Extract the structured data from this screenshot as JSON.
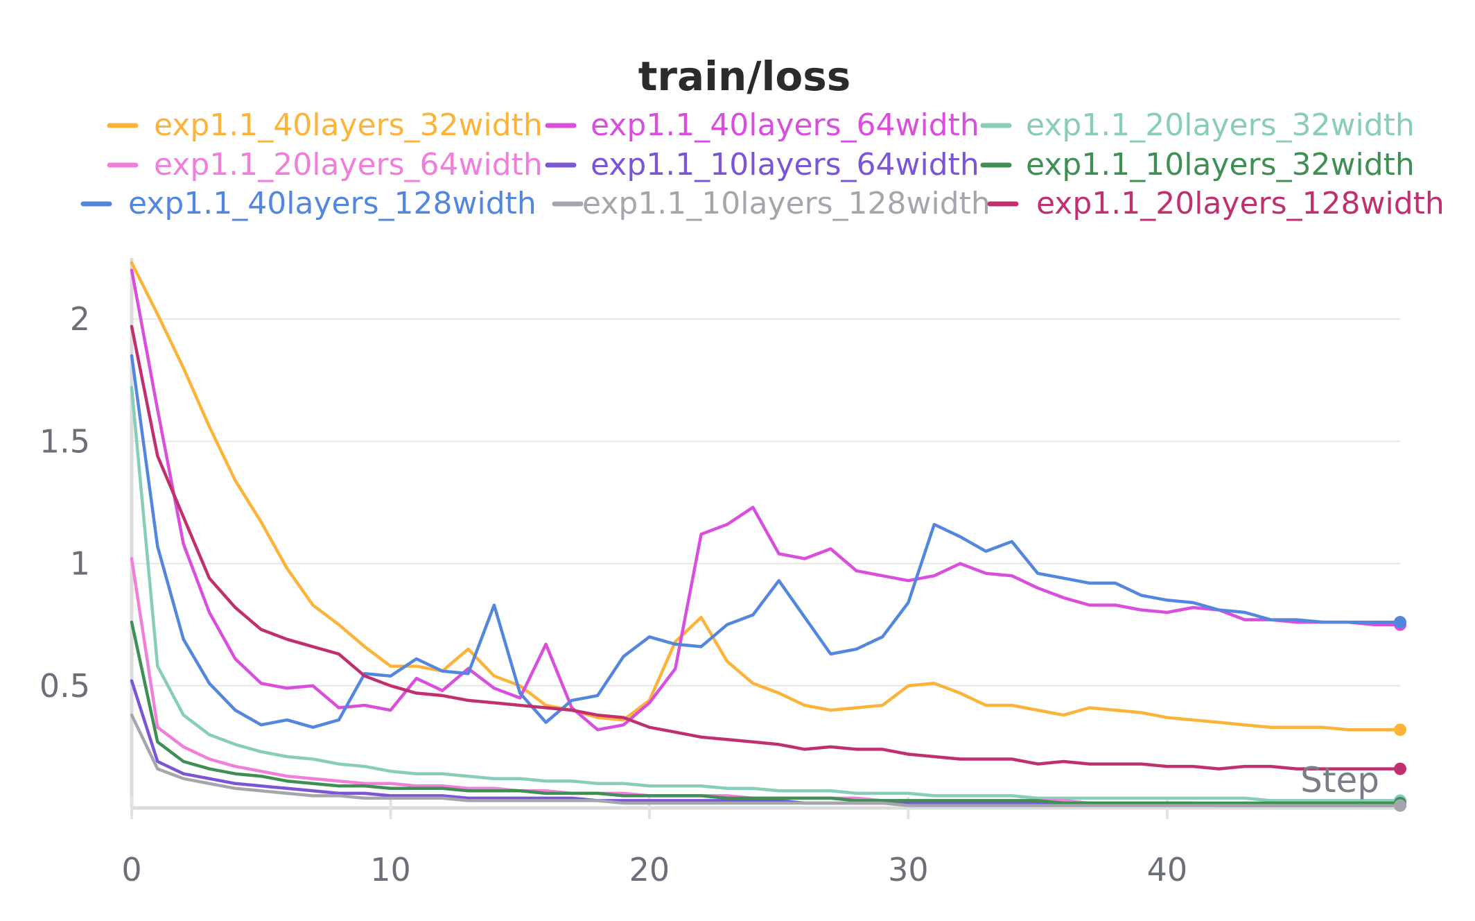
{
  "chart_data": {
    "type": "line",
    "title": "train/loss",
    "xlabel": "Step",
    "ylabel": "",
    "xlim": [
      0,
      49
    ],
    "ylim": [
      0,
      2.25
    ],
    "xticks": [
      0,
      10,
      20,
      30,
      40
    ],
    "yticks": [
      0.5,
      1,
      1.5,
      2
    ],
    "ytick_labels": [
      "0.5",
      "1",
      "1.5",
      "2"
    ],
    "grid": true,
    "legend_position": "top",
    "x": [
      0,
      1,
      2,
      3,
      4,
      5,
      6,
      7,
      8,
      9,
      10,
      11,
      12,
      13,
      14,
      15,
      16,
      17,
      18,
      19,
      20,
      21,
      22,
      23,
      24,
      25,
      26,
      27,
      28,
      29,
      30,
      31,
      32,
      33,
      34,
      35,
      36,
      37,
      38,
      39,
      40,
      41,
      42,
      43,
      44,
      45,
      46,
      47,
      48,
      49
    ],
    "series": [
      {
        "name": "exp1.1_40layers_32width",
        "color": "#fbb33a",
        "values": [
          2.23,
          2.02,
          1.8,
          1.56,
          1.34,
          1.17,
          0.98,
          0.83,
          0.75,
          0.66,
          0.58,
          0.58,
          0.56,
          0.65,
          0.54,
          0.5,
          0.42,
          0.4,
          0.37,
          0.36,
          0.44,
          0.68,
          0.78,
          0.6,
          0.51,
          0.47,
          0.42,
          0.4,
          0.41,
          0.42,
          0.5,
          0.51,
          0.47,
          0.42,
          0.42,
          0.4,
          0.38,
          0.41,
          0.4,
          0.39,
          0.37,
          0.36,
          0.35,
          0.34,
          0.33,
          0.33,
          0.33,
          0.32,
          0.32,
          0.32
        ]
      },
      {
        "name": "exp1.1_40layers_64width",
        "color": "#d94edc",
        "values": [
          2.2,
          1.63,
          1.08,
          0.8,
          0.61,
          0.51,
          0.49,
          0.5,
          0.41,
          0.42,
          0.4,
          0.53,
          0.48,
          0.57,
          0.49,
          0.45,
          0.67,
          0.41,
          0.32,
          0.34,
          0.43,
          0.57,
          1.12,
          1.16,
          1.23,
          1.04,
          1.02,
          1.06,
          0.97,
          0.95,
          0.93,
          0.95,
          1.0,
          0.96,
          0.95,
          0.9,
          0.86,
          0.83,
          0.83,
          0.81,
          0.8,
          0.82,
          0.81,
          0.77,
          0.77,
          0.76,
          0.76,
          0.76,
          0.75,
          0.75
        ]
      },
      {
        "name": "exp1.1_20layers_32width",
        "color": "#87cdb9",
        "values": [
          1.72,
          0.58,
          0.38,
          0.3,
          0.26,
          0.23,
          0.21,
          0.2,
          0.18,
          0.17,
          0.15,
          0.14,
          0.14,
          0.13,
          0.12,
          0.12,
          0.11,
          0.11,
          0.1,
          0.1,
          0.09,
          0.09,
          0.09,
          0.08,
          0.08,
          0.07,
          0.07,
          0.07,
          0.06,
          0.06,
          0.06,
          0.05,
          0.05,
          0.05,
          0.05,
          0.04,
          0.04,
          0.04,
          0.04,
          0.04,
          0.04,
          0.04,
          0.04,
          0.04,
          0.03,
          0.03,
          0.03,
          0.03,
          0.03,
          0.03
        ]
      },
      {
        "name": "exp1.1_20layers_64width",
        "color": "#ef7fda",
        "values": [
          1.02,
          0.33,
          0.25,
          0.2,
          0.17,
          0.15,
          0.13,
          0.12,
          0.11,
          0.1,
          0.1,
          0.09,
          0.09,
          0.08,
          0.08,
          0.07,
          0.07,
          0.06,
          0.06,
          0.06,
          0.05,
          0.05,
          0.05,
          0.05,
          0.04,
          0.04,
          0.04,
          0.04,
          0.04,
          0.03,
          0.03,
          0.03,
          0.03,
          0.03,
          0.03,
          0.03,
          0.03,
          0.02,
          0.02,
          0.02,
          0.02,
          0.02,
          0.02,
          0.02,
          0.02,
          0.02,
          0.02,
          0.02,
          0.02,
          0.02
        ]
      },
      {
        "name": "exp1.1_10layers_64width",
        "color": "#7a55d6",
        "values": [
          0.52,
          0.19,
          0.14,
          0.12,
          0.1,
          0.09,
          0.08,
          0.07,
          0.06,
          0.06,
          0.05,
          0.05,
          0.05,
          0.04,
          0.04,
          0.04,
          0.04,
          0.04,
          0.03,
          0.03,
          0.03,
          0.03,
          0.03,
          0.03,
          0.03,
          0.03,
          0.02,
          0.02,
          0.02,
          0.02,
          0.02,
          0.02,
          0.02,
          0.02,
          0.02,
          0.02,
          0.02,
          0.02,
          0.02,
          0.02,
          0.02,
          0.02,
          0.01,
          0.01,
          0.01,
          0.01,
          0.01,
          0.01,
          0.01,
          0.01
        ]
      },
      {
        "name": "exp1.1_10layers_32width",
        "color": "#3f8f55",
        "values": [
          0.76,
          0.27,
          0.19,
          0.16,
          0.14,
          0.13,
          0.11,
          0.1,
          0.09,
          0.09,
          0.08,
          0.08,
          0.08,
          0.07,
          0.07,
          0.07,
          0.06,
          0.06,
          0.06,
          0.05,
          0.05,
          0.05,
          0.05,
          0.04,
          0.04,
          0.04,
          0.04,
          0.04,
          0.03,
          0.03,
          0.03,
          0.03,
          0.03,
          0.03,
          0.03,
          0.03,
          0.02,
          0.02,
          0.02,
          0.02,
          0.02,
          0.02,
          0.02,
          0.02,
          0.02,
          0.02,
          0.02,
          0.02,
          0.02,
          0.02
        ]
      },
      {
        "name": "exp1.1_40layers_128width",
        "color": "#5387dd",
        "values": [
          1.85,
          1.07,
          0.69,
          0.51,
          0.4,
          0.34,
          0.36,
          0.33,
          0.36,
          0.55,
          0.54,
          0.61,
          0.56,
          0.55,
          0.83,
          0.47,
          0.35,
          0.44,
          0.46,
          0.62,
          0.7,
          0.67,
          0.66,
          0.75,
          0.79,
          0.93,
          0.78,
          0.63,
          0.65,
          0.7,
          0.84,
          1.16,
          1.11,
          1.05,
          1.09,
          0.96,
          0.94,
          0.92,
          0.92,
          0.87,
          0.85,
          0.84,
          0.81,
          0.8,
          0.77,
          0.77,
          0.76,
          0.76,
          0.76,
          0.76
        ]
      },
      {
        "name": "exp1.1_10layers_128width",
        "color": "#a3a7ad",
        "values": [
          0.38,
          0.16,
          0.12,
          0.1,
          0.08,
          0.07,
          0.06,
          0.05,
          0.05,
          0.04,
          0.04,
          0.04,
          0.04,
          0.03,
          0.03,
          0.03,
          0.03,
          0.03,
          0.03,
          0.02,
          0.02,
          0.02,
          0.02,
          0.02,
          0.02,
          0.02,
          0.02,
          0.02,
          0.02,
          0.02,
          0.01,
          0.01,
          0.01,
          0.01,
          0.01,
          0.01,
          0.01,
          0.01,
          0.01,
          0.01,
          0.01,
          0.01,
          0.01,
          0.01,
          0.01,
          0.01,
          0.01,
          0.01,
          0.01,
          0.01
        ]
      },
      {
        "name": "exp1.1_20layers_128width",
        "color": "#c0306f",
        "values": [
          1.97,
          1.44,
          1.19,
          0.94,
          0.82,
          0.73,
          0.69,
          0.66,
          0.63,
          0.54,
          0.5,
          0.47,
          0.46,
          0.44,
          0.43,
          0.42,
          0.41,
          0.4,
          0.38,
          0.37,
          0.33,
          0.31,
          0.29,
          0.28,
          0.27,
          0.26,
          0.24,
          0.25,
          0.24,
          0.24,
          0.22,
          0.21,
          0.2,
          0.2,
          0.2,
          0.18,
          0.19,
          0.18,
          0.18,
          0.18,
          0.17,
          0.17,
          0.16,
          0.17,
          0.17,
          0.16,
          0.16,
          0.16,
          0.16,
          0.16
        ]
      }
    ]
  }
}
